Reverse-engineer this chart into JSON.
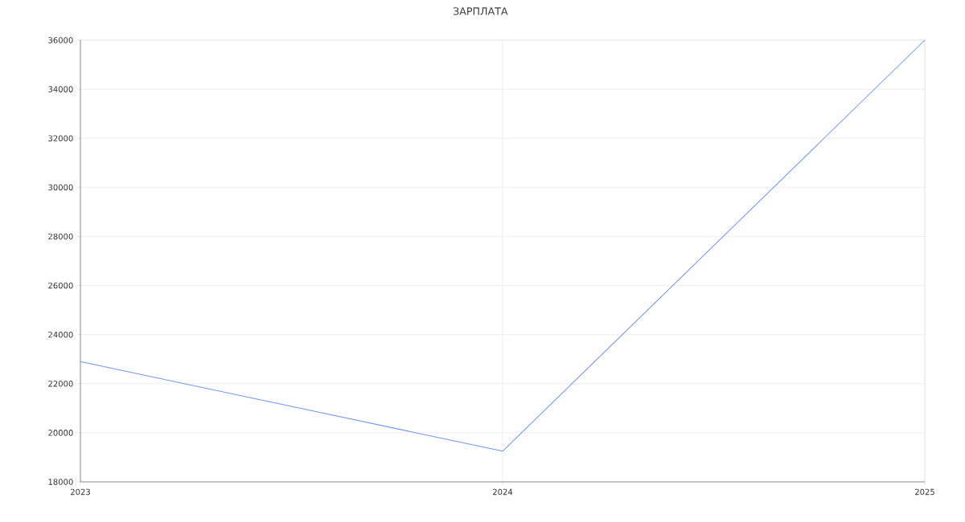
{
  "chart_data": {
    "type": "line",
    "title": "ЗАРПЛАТА",
    "x": [
      "2023",
      "2024",
      "2025"
    ],
    "series": [
      {
        "color": "#6d96f2",
        "values": [
          22900,
          19250,
          36000
        ]
      }
    ],
    "xlim": [
      "2023",
      "2025"
    ],
    "xticks": [
      "2023",
      "2024",
      "2025"
    ],
    "ylim": [
      18000,
      36000
    ],
    "yticks": [
      18000,
      20000,
      22000,
      24000,
      26000,
      28000,
      30000,
      32000,
      34000,
      36000
    ],
    "grid": true,
    "marker": "none",
    "line_style": "solid"
  }
}
